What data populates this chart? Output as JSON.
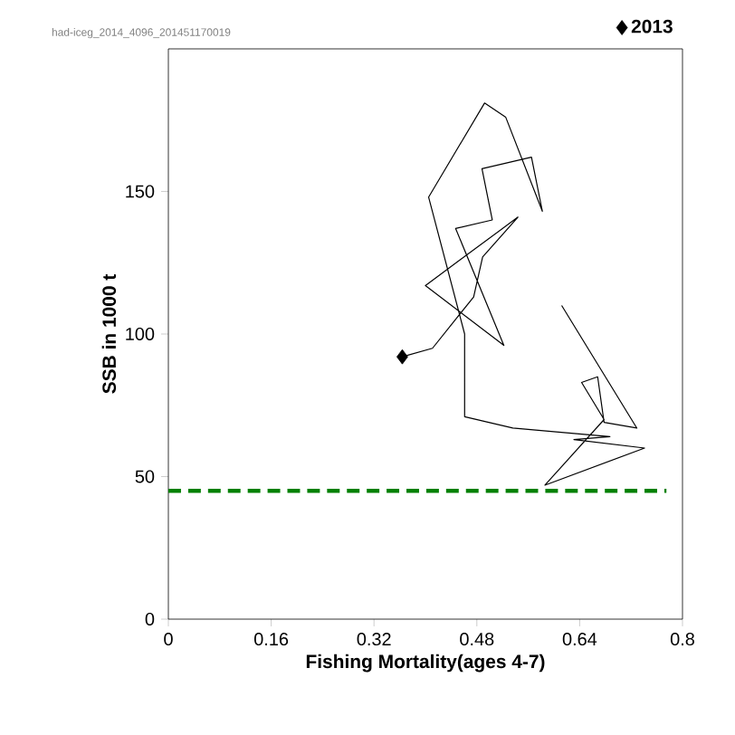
{
  "chart_data": {
    "type": "line",
    "xlabel": "Fishing Mortality(ages 4-7)",
    "ylabel": "SSB in 1000 t",
    "xlim": [
      0,
      0.8
    ],
    "xticks": [
      0,
      0.16,
      0.32,
      0.48,
      0.64,
      0.8
    ],
    "ylim": [
      0,
      200
    ],
    "yticks": [
      0,
      50,
      100,
      150
    ],
    "legend": "top right",
    "grid": false,
    "annotations": [
      "had-iceg_2014_4096_201451170019"
    ],
    "ref_lines": [
      {
        "axis": "y",
        "value": 45,
        "color": "#008000",
        "line_style": "dashed"
      }
    ],
    "series": [
      {
        "color": "#000000",
        "marker": "none",
        "line_style": "solid",
        "x": [
          0.612,
          0.729,
          0.678,
          0.668,
          0.643,
          0.678,
          0.586,
          0.741,
          0.631,
          0.687,
          0.536,
          0.461,
          0.461,
          0.405,
          0.492,
          0.525,
          0.582,
          0.565,
          0.488,
          0.504,
          0.447,
          0.522,
          0.4,
          0.544,
          0.489,
          0.475,
          0.411,
          0.364
        ],
        "values": [
          110,
          67,
          69,
          85,
          83,
          70,
          47,
          60,
          63,
          64,
          67,
          71,
          100,
          148,
          181,
          176,
          143,
          162,
          158,
          140,
          137,
          96,
          117,
          141,
          127,
          113,
          95,
          92
        ]
      },
      {
        "type": "scatter",
        "name": "2013",
        "color": "#000000",
        "marker": "diamond",
        "x": [
          0.364
        ],
        "values": [
          92
        ]
      }
    ]
  }
}
